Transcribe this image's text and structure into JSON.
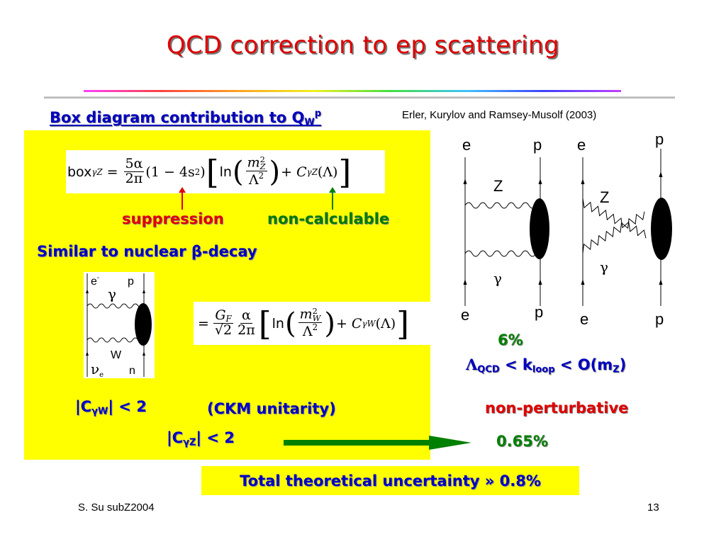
{
  "slide": {
    "title": "QCD correction to ep scattering",
    "heading": {
      "text": "Box diagram contribution to Q",
      "sub": "W",
      "sup": "p"
    },
    "citation": "Erler,  Kurylov and Ramsey-Musolf  (2003)",
    "formula1": {
      "lhs": "box",
      "lhs_sub": "γZ",
      "num": "5α",
      "den": "2π",
      "factor": "(1 − 4s",
      "factor_sup": "2",
      "factor_close": ")",
      "ln": "ln",
      "inner_num": "m",
      "inner_num_sub": "Z",
      "inner_num_sup": "2",
      "inner_den": "Λ",
      "inner_den_sup": "2",
      "plus": "+ ",
      "c": "C",
      "c_sub": "γZ",
      "c_arg": "(Λ)"
    },
    "label_suppression": "suppression",
    "label_noncalculable": "non-calculable",
    "similar": "Similar to nuclear β-decay",
    "formula2": {
      "eq": "=",
      "gf_num": "G",
      "gf_num_sub": "F",
      "gf_den": "√2",
      "a_num": "α",
      "a_den": "2π",
      "ln": "ln",
      "inner_num": "m",
      "inner_num_sub": "W",
      "inner_num_sup": "2",
      "inner_den": "Λ",
      "inner_den_sup": "2",
      "plus": "+ ",
      "c": "C",
      "c_sub": "γW",
      "c_arg": "(Λ)"
    },
    "small_diagram": {
      "e": "e",
      "e_sup": "-",
      "p": "p",
      "gamma": "γ",
      "w": "W",
      "nu": "ν",
      "nu_sub": "e",
      "n": "n"
    },
    "ckm1": {
      "pre": "|C",
      "sub": "γW",
      "post": "| < 2"
    },
    "ckm1b": "(CKM unitarity)",
    "ckm2": {
      "pre": "|C",
      "sub": "γZ",
      "post": "| < 2"
    },
    "six_percent": "6%",
    "lambda": {
      "l": "Λ",
      "l_sub": "QCD",
      "mid": " < k",
      "k_sub": "loop",
      "post": " < O(m",
      "m_sub": "Z",
      "close": ")"
    },
    "nonperturbative": "non-perturbative",
    "zero65": "0.65%",
    "total": "Total theoretical uncertainty » 0.8%",
    "footer_left": "S. Su  subZ2004",
    "footer_right": "13",
    "diagrams": {
      "d1": {
        "e_top": "e",
        "p_top": "p",
        "z": "Z",
        "gamma": "γ",
        "e_bot": "e",
        "p_bot": "p"
      },
      "d2": {
        "e_top": "e",
        "p_top": "p",
        "z": "Z",
        "gamma": "γ",
        "e_bot": "e",
        "p_bot": "p"
      }
    }
  },
  "colors": {
    "title": "#e00000",
    "blue_text": "#0000c0",
    "red_text": "#e00000",
    "green_text": "#008000",
    "panel": "#ffff00",
    "arrow": "#008000"
  }
}
